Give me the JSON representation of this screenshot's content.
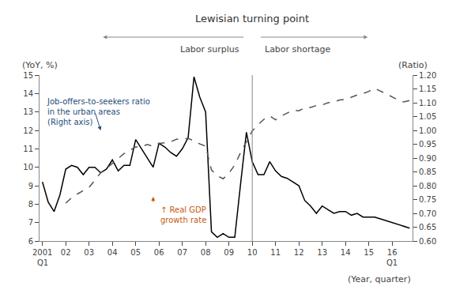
{
  "chart_data": {
    "type": "line",
    "title": "Lewisian turning point",
    "ylabel": "(YoY, %)",
    "y2label": "(Ratio)",
    "xlabel": "(Year, quarter)",
    "annotations": [
      {
        "text": "Labor surplus"
      },
      {
        "text": "Labor shortage"
      },
      {
        "text": "↑ Real GDP\ngrowth rate",
        "color": "#C55A11"
      },
      {
        "text": "Job-offers-to-seekers ratio\nin the urban areas\n(Right axis)",
        "color": "#1F4E79"
      },
      {
        "text": "Q1"
      },
      {
        "text": "Q1"
      }
    ],
    "vline_at": 36,
    "categories": [
      "2001",
      null,
      null,
      null,
      "02",
      null,
      null,
      null,
      "03",
      null,
      null,
      null,
      "04",
      null,
      null,
      null,
      "05",
      null,
      null,
      null,
      "06",
      null,
      null,
      null,
      "07",
      null,
      null,
      null,
      "08",
      null,
      null,
      null,
      "09",
      null,
      null,
      null,
      "10",
      null,
      null,
      null,
      "11",
      null,
      null,
      null,
      "12",
      null,
      null,
      null,
      "13",
      null,
      null,
      null,
      "14",
      null,
      null,
      null,
      "15",
      null,
      null,
      null,
      "16",
      null,
      null,
      null
    ],
    "series": [
      {
        "color": "#000000",
        "line_style": "solid",
        "values": [
          9.2,
          8.1,
          7.6,
          8.5,
          9.9,
          10.1,
          10.0,
          9.6,
          10.0,
          10.0,
          9.7,
          9.9,
          10.4,
          9.8,
          10.1,
          10.1,
          11.5,
          11.0,
          10.5,
          10.0,
          11.3,
          11.1,
          10.8,
          10.6,
          11.0,
          11.6,
          14.9,
          13.8,
          13.0,
          6.5,
          6.2,
          6.4,
          6.2,
          6.2,
          9.1,
          11.9,
          10.3,
          9.6,
          9.6,
          10.3,
          9.8,
          9.5,
          9.4,
          9.2,
          9.0,
          8.2,
          7.9,
          7.5,
          7.9,
          7.7,
          7.5,
          7.6,
          7.6,
          7.4,
          7.5,
          7.3,
          7.3,
          7.3,
          7.2,
          7.1,
          7.0,
          6.9,
          6.8,
          6.7
        ]
      },
      {
        "color": "#555555",
        "line_style": "dashed",
        "axis": "y2",
        "values": [
          null,
          null,
          null,
          null,
          0.737,
          0.756,
          0.77,
          0.782,
          0.794,
          0.82,
          0.847,
          0.863,
          0.881,
          0.898,
          0.916,
          0.928,
          0.94,
          0.941,
          0.949,
          0.942,
          0.953,
          0.955,
          0.959,
          0.968,
          0.97,
          0.971,
          0.962,
          0.951,
          0.943,
          0.857,
          0.836,
          0.825,
          0.845,
          0.875,
          0.92,
          0.96,
          0.998,
          1.021,
          1.04,
          1.052,
          1.038,
          1.052,
          1.063,
          1.073,
          1.071,
          1.082,
          1.083,
          1.09,
          1.092,
          1.1,
          1.103,
          1.11,
          1.112,
          1.121,
          1.128,
          1.133,
          1.141,
          1.152,
          1.143,
          1.132,
          1.121,
          1.11,
          1.103,
          1.108
        ]
      }
    ],
    "ylim": [
      6,
      15
    ],
    "yticks": [
      6,
      7,
      8,
      9,
      10,
      11,
      12,
      13,
      14,
      15
    ],
    "y2lim": [
      0.6,
      1.2
    ],
    "y2ticks": [
      {
        "value": 0.6,
        "label": "0.60"
      },
      {
        "value": 0.65,
        "label": "0.65"
      },
      {
        "value": 0.7,
        "label": "0.70"
      },
      {
        "value": 0.75,
        "label": "0.75"
      },
      {
        "value": 0.8,
        "label": "0.80"
      },
      {
        "value": 0.85,
        "label": "0.85"
      },
      {
        "value": 0.9,
        "label": "0.90"
      },
      {
        "value": 0.95,
        "label": "0.95"
      },
      {
        "value": 1.0,
        "label": "1.00"
      },
      {
        "value": 1.05,
        "label": "1.05"
      },
      {
        "value": 1.1,
        "label": "1.10"
      },
      {
        "value": 1.15,
        "label": "1.15"
      },
      {
        "value": 1.2,
        "label": "1.20"
      }
    ],
    "grid": false
  }
}
